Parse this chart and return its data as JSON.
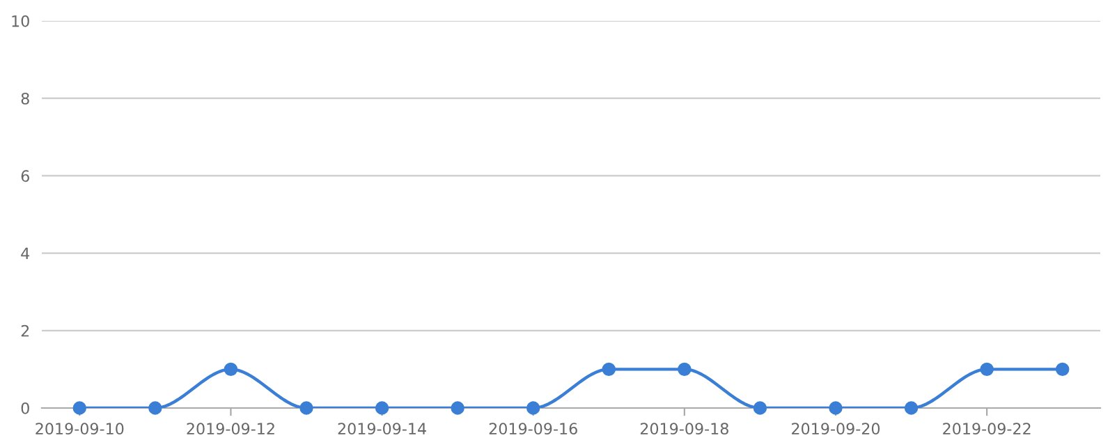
{
  "chart_data": {
    "type": "line",
    "x": [
      "2019-09-10",
      "2019-09-11",
      "2019-09-12",
      "2019-09-13",
      "2019-09-14",
      "2019-09-15",
      "2019-09-16",
      "2019-09-17",
      "2019-09-18",
      "2019-09-19",
      "2019-09-20",
      "2019-09-21",
      "2019-09-22",
      "2019-09-23"
    ],
    "series": [
      {
        "color": "#3a7fd5",
        "values": [
          0,
          0,
          1,
          0,
          0,
          0,
          0,
          1,
          1,
          0,
          0,
          0,
          1,
          1
        ]
      }
    ],
    "xlim": [
      "2019-09-09T12:00",
      "2019-09-23T12:00"
    ],
    "xticks": [
      "2019-09-10",
      "2019-09-12",
      "2019-09-14",
      "2019-09-16",
      "2019-09-18",
      "2019-09-20",
      "2019-09-22"
    ],
    "ylim": [
      0,
      10
    ],
    "yticks": [
      0,
      2,
      4,
      6,
      8,
      10
    ],
    "grid": "y",
    "marker": "circle",
    "line_style": "solid",
    "legend": false
  }
}
